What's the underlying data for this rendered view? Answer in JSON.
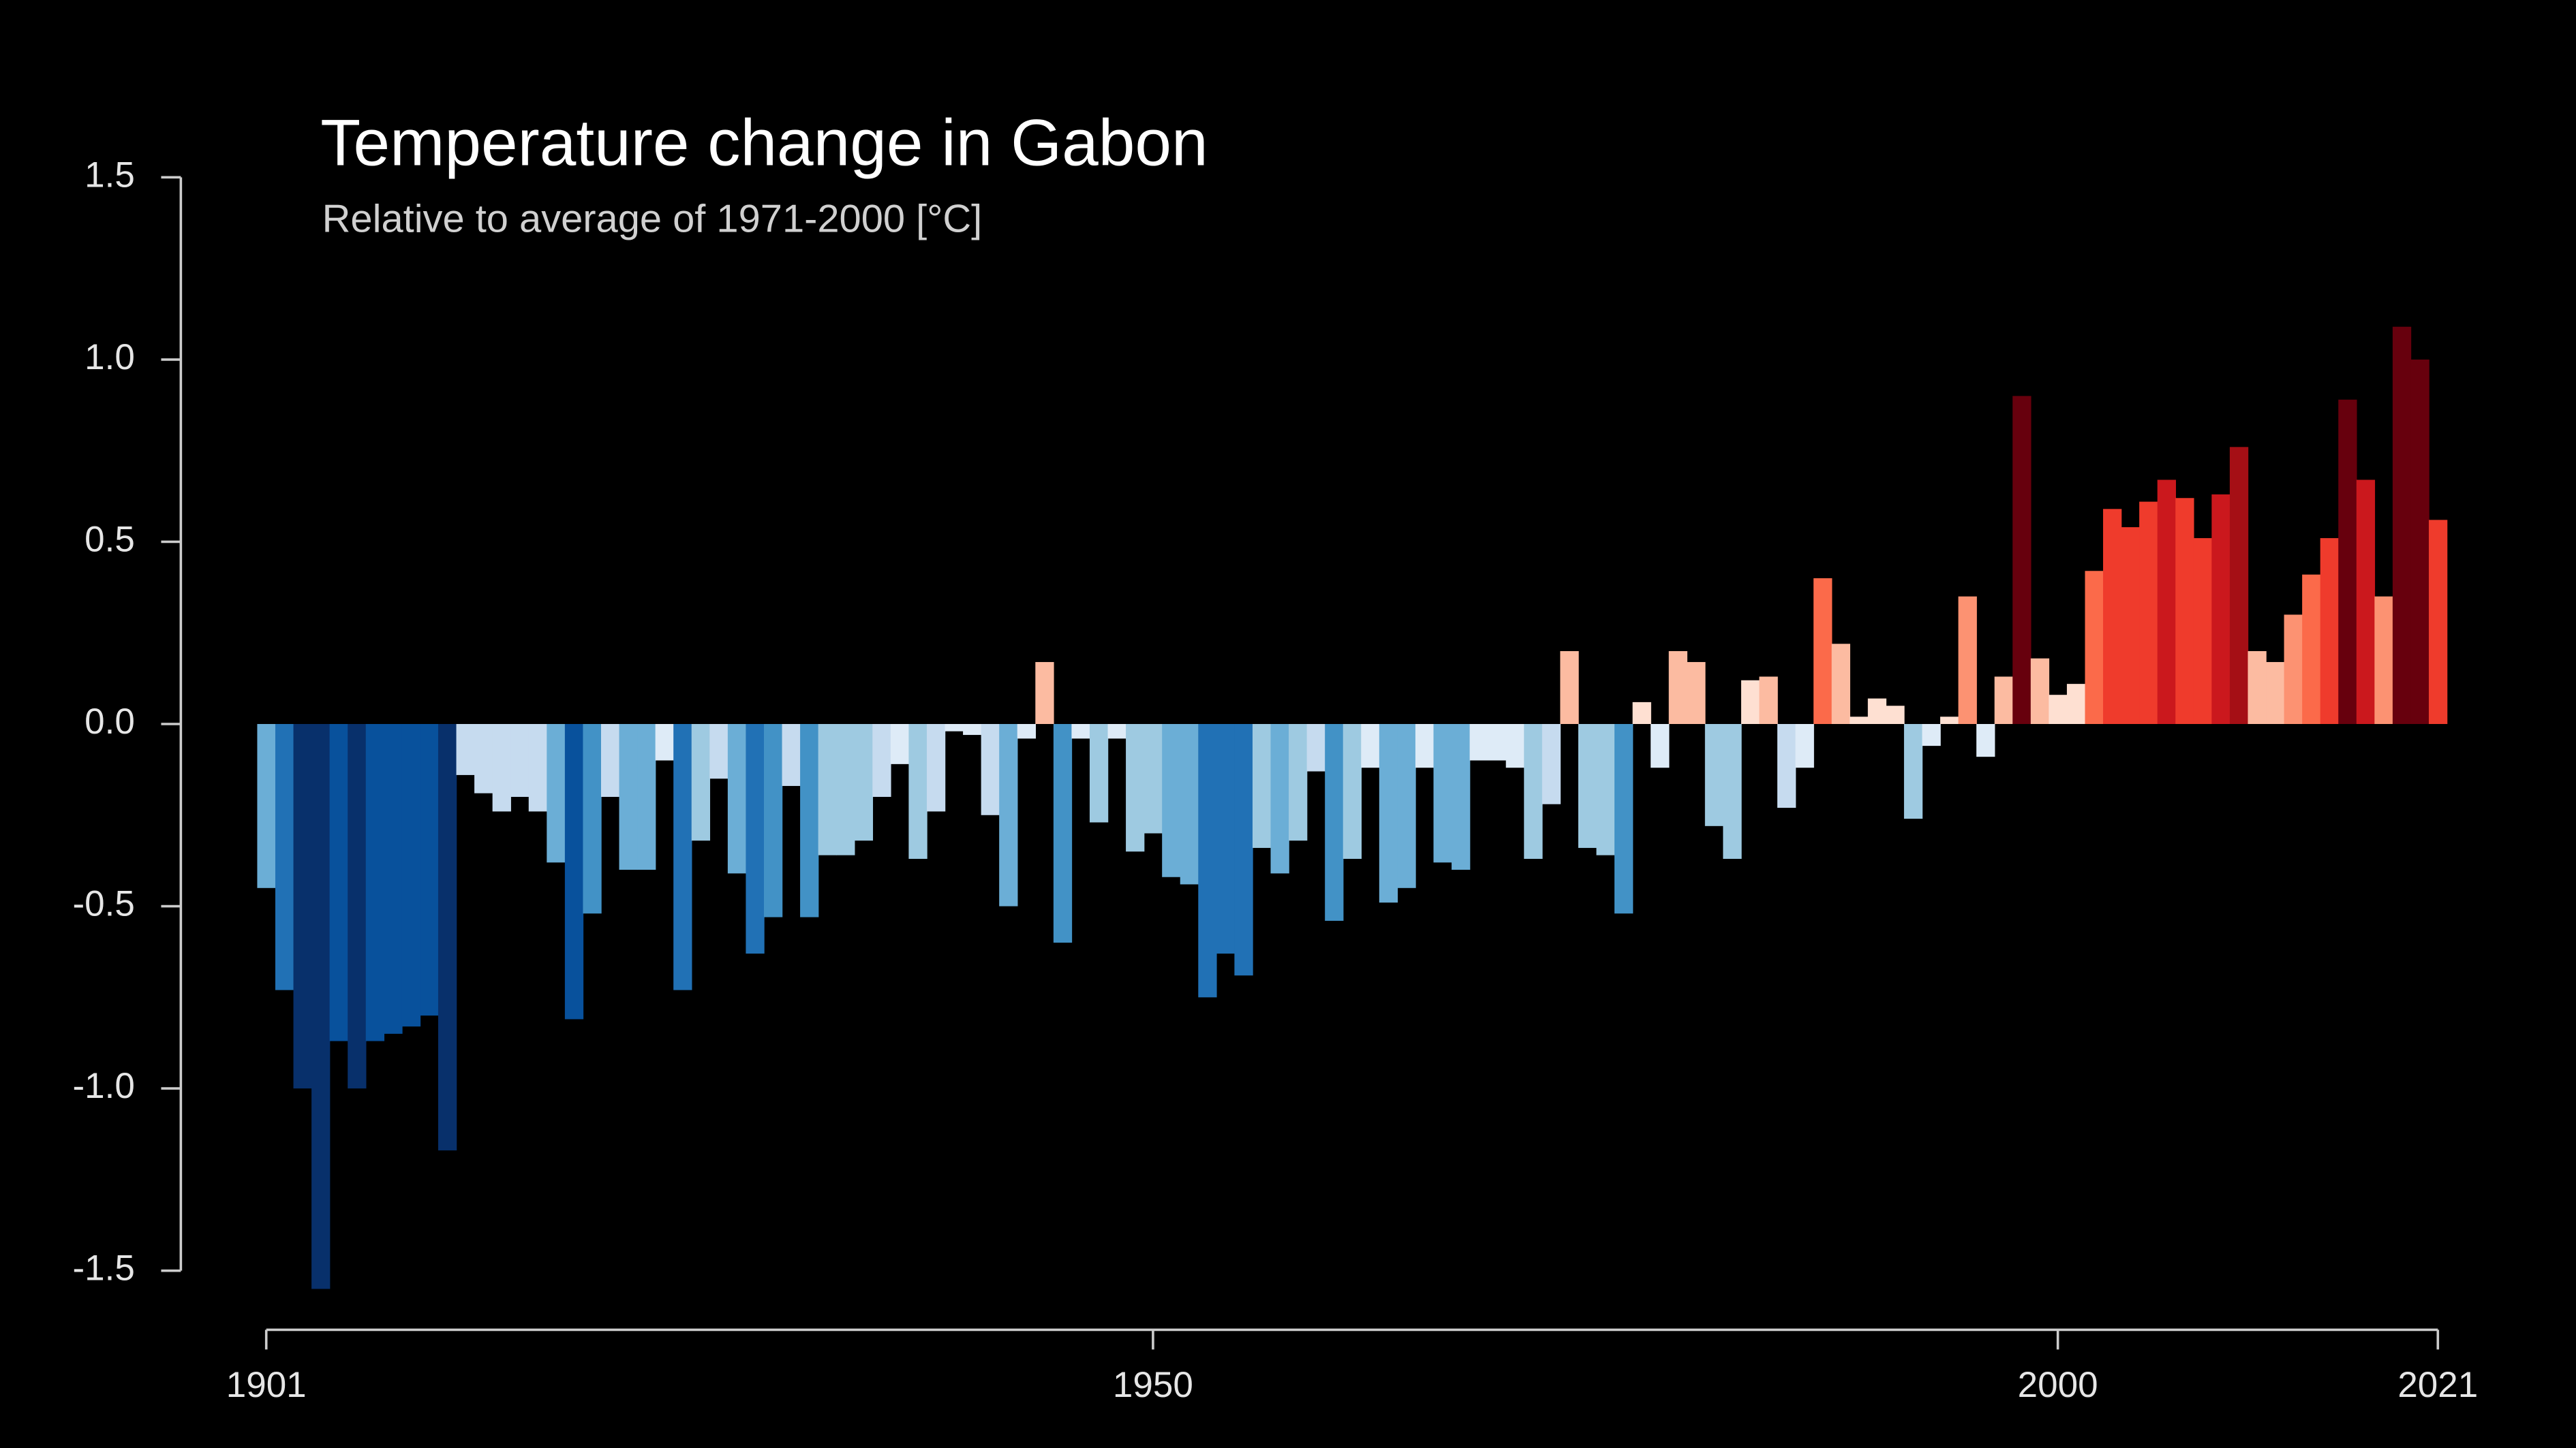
{
  "chart_data": {
    "type": "bar",
    "title": "Temperature change in Gabon",
    "subtitle": "Relative to average of 1971-2000  [°C]",
    "x": [
      1901,
      1902,
      1903,
      1904,
      1905,
      1906,
      1907,
      1908,
      1909,
      1910,
      1911,
      1912,
      1913,
      1914,
      1915,
      1916,
      1917,
      1918,
      1919,
      1920,
      1921,
      1922,
      1923,
      1924,
      1925,
      1926,
      1927,
      1928,
      1929,
      1930,
      1931,
      1932,
      1933,
      1934,
      1935,
      1936,
      1937,
      1938,
      1939,
      1940,
      1941,
      1942,
      1943,
      1944,
      1945,
      1946,
      1947,
      1948,
      1949,
      1950,
      1951,
      1952,
      1953,
      1954,
      1955,
      1956,
      1957,
      1958,
      1959,
      1960,
      1961,
      1962,
      1963,
      1964,
      1965,
      1966,
      1967,
      1968,
      1969,
      1970,
      1971,
      1972,
      1973,
      1974,
      1975,
      1976,
      1977,
      1978,
      1979,
      1980,
      1981,
      1982,
      1983,
      1984,
      1985,
      1986,
      1987,
      1988,
      1989,
      1990,
      1991,
      1992,
      1993,
      1994,
      1995,
      1996,
      1997,
      1998,
      1999,
      2000,
      2001,
      2002,
      2003,
      2004,
      2005,
      2006,
      2007,
      2008,
      2009,
      2010,
      2011,
      2012,
      2013,
      2014,
      2015,
      2016,
      2017,
      2018,
      2019,
      2020,
      2021
    ],
    "values": [
      -0.45,
      -0.73,
      -1.0,
      -1.55,
      -0.87,
      -1.0,
      -0.87,
      -0.85,
      -0.83,
      -0.8,
      -1.17,
      -0.14,
      -0.19,
      -0.24,
      -0.2,
      -0.24,
      -0.38,
      -0.81,
      -0.52,
      -0.2,
      -0.4,
      -0.4,
      -0.1,
      -0.73,
      -0.32,
      -0.15,
      -0.41,
      -0.63,
      -0.53,
      -0.17,
      -0.53,
      -0.36,
      -0.36,
      -0.32,
      -0.2,
      -0.11,
      -0.37,
      -0.24,
      -0.02,
      -0.03,
      -0.25,
      -0.5,
      -0.04,
      0.17,
      -0.6,
      -0.04,
      -0.27,
      -0.04,
      -0.35,
      -0.3,
      -0.42,
      -0.44,
      -0.75,
      -0.63,
      -0.69,
      -0.34,
      -0.41,
      -0.32,
      -0.13,
      -0.54,
      -0.37,
      -0.12,
      -0.49,
      -0.45,
      -0.12,
      -0.38,
      -0.4,
      -0.1,
      -0.1,
      -0.12,
      -0.37,
      -0.22,
      0.2,
      -0.34,
      -0.36,
      -0.52,
      0.06,
      -0.12,
      0.2,
      0.17,
      -0.28,
      -0.37,
      0.12,
      0.13,
      -0.23,
      -0.12,
      0.4,
      0.22,
      0.02,
      0.07,
      0.05,
      -0.26,
      -0.06,
      0.02,
      0.35,
      -0.09,
      0.13,
      0.9,
      0.18,
      0.08,
      0.11,
      0.42,
      0.59,
      0.54,
      0.61,
      0.67,
      0.62,
      0.51,
      0.63,
      0.76,
      0.2,
      0.17,
      0.3,
      0.41,
      0.51,
      0.89,
      0.67,
      0.35,
      1.09,
      1.0,
      0.56
    ],
    "palette": [
      "#08306b",
      "#08519c",
      "#2171b5",
      "#4292c6",
      "#6baed6",
      "#9ecae1",
      "#c6dbef",
      "#deebf7",
      "#fee0d2",
      "#fcbba1",
      "#fc9272",
      "#fb6a4a",
      "#ef3b2c",
      "#cb181d",
      "#a50f15",
      "#67000d"
    ],
    "xlim": [
      1901,
      2021
    ],
    "xticks": [
      1901,
      1950,
      2000,
      2021
    ],
    "ylim": [
      -1.5,
      1.5
    ],
    "yticks": [
      1.5,
      {
        "value": 1.0,
        "label": "1.0"
      },
      0.5,
      {
        "value": 0.0,
        "label": "0.0"
      },
      -0.5,
      {
        "value": -1.0,
        "label": "-1.0"
      },
      -1.5
    ]
  }
}
